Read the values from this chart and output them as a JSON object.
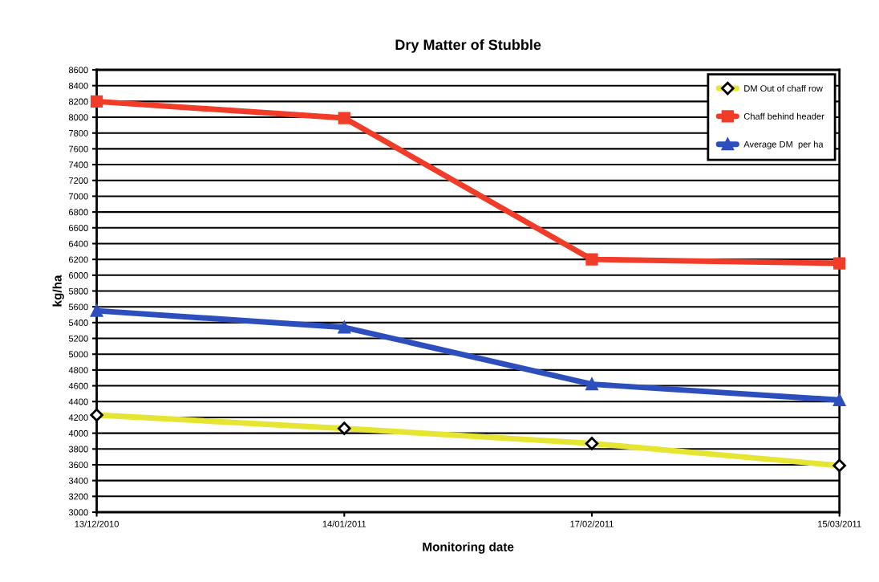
{
  "chart_data": {
    "type": "line",
    "title": "Dry Matter of Stubble",
    "xlabel": "Monitoring date",
    "ylabel": "kg/ha",
    "categories": [
      "13/12/2010",
      "14/01/2011",
      "17/02/2011",
      "15/03/2011"
    ],
    "series": [
      {
        "name": "DM Out of chaff row",
        "color": "#e6e632",
        "values": [
          4230,
          4060,
          3870,
          3590
        ],
        "marker": "diamond"
      },
      {
        "name": "Chaff behind header",
        "color": "#f03c28",
        "values": [
          8200,
          7990,
          6200,
          6150
        ],
        "marker": "square"
      },
      {
        "name": "Average DM  per ha",
        "color": "#2d4fbe",
        "values": [
          5550,
          5340,
          4620,
          4420
        ],
        "marker": "triangle"
      }
    ],
    "ylim": [
      3000,
      8600
    ],
    "yticks": [
      3000,
      3200,
      3400,
      3600,
      3800,
      4000,
      4200,
      4400,
      4600,
      4800,
      5000,
      5200,
      5400,
      5600,
      5800,
      6000,
      6200,
      6400,
      6600,
      6800,
      7000,
      7200,
      7400,
      7600,
      7800,
      8000,
      8200,
      8400,
      8600
    ],
    "grid": "y",
    "legend": "top right",
    "line_style": "solid"
  }
}
